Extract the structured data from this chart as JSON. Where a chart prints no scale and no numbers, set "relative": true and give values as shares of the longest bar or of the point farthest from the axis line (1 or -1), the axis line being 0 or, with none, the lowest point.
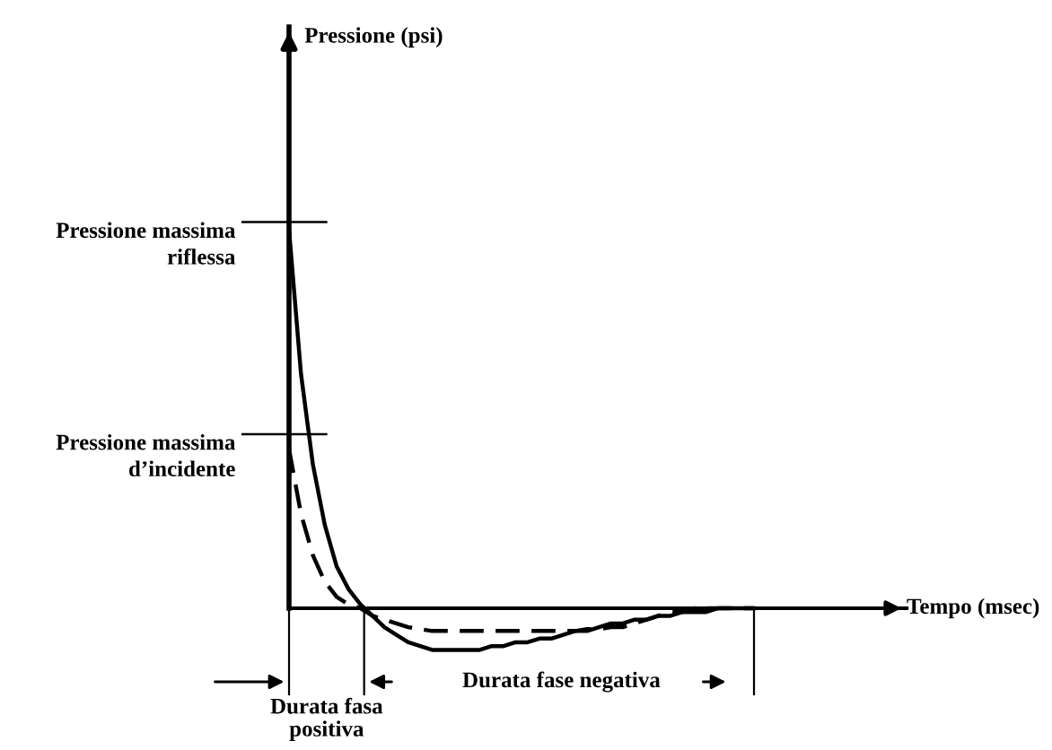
{
  "chart_data": {
    "type": "line",
    "relative": true,
    "categories": [
      null,
      null,
      null,
      null,
      null,
      null,
      null,
      null,
      null,
      null,
      null,
      null,
      null,
      null,
      null,
      null,
      null,
      null,
      null,
      null,
      null,
      null,
      null,
      null,
      null,
      null,
      null,
      null,
      null,
      null,
      null,
      null,
      null,
      null,
      null,
      null,
      null,
      null,
      null,
      null
    ],
    "series": [
      {
        "color": "#000000",
        "line_style": "solid",
        "values": [
          1,
          0.62,
          0.38,
          0.22,
          0.11,
          0.05,
          0.01,
          -0.02,
          -0.05,
          -0.07,
          -0.09,
          -0.1,
          -0.11,
          -0.11,
          -0.11,
          -0.11,
          -0.11,
          -0.1,
          -0.1,
          -0.09,
          -0.09,
          -0.08,
          -0.08,
          -0.07,
          -0.06,
          -0.06,
          -0.05,
          -0.04,
          -0.04,
          -0.03,
          -0.03,
          -0.02,
          -0.02,
          -0.01,
          -0.01,
          -0.01,
          0,
          0,
          0,
          0
        ]
      },
      {
        "color": "#000000",
        "line_style": "dashed",
        "values": [
          0.42,
          0.25,
          0.14,
          0.07,
          0.03,
          0.01,
          0,
          -0.02,
          -0.03,
          -0.04,
          -0.05,
          -0.055,
          -0.06,
          -0.06,
          -0.06,
          -0.06,
          -0.06,
          -0.06,
          -0.06,
          -0.06,
          -0.06,
          -0.06,
          -0.06,
          -0.06,
          -0.06,
          -0.055,
          -0.055,
          -0.05,
          -0.05,
          -0.04,
          -0.03,
          -0.02,
          -0.01,
          -0.01,
          0,
          0,
          0,
          0,
          0,
          0
        ]
      }
    ],
    "ref_lines": [
      {
        "axis": "y",
        "value": 1.02,
        "label": "Pressione massima\nriflessa"
      },
      {
        "axis": "y",
        "value": 0.46,
        "label": "Pressione massima\nd’incidente"
      }
    ],
    "annotations": [
      "Durata fasa\npositiva",
      "Durata fase negativa",
      "Tempo (msec)",
      "Pressione (psi)"
    ],
    "legend": false,
    "marker": "none"
  }
}
